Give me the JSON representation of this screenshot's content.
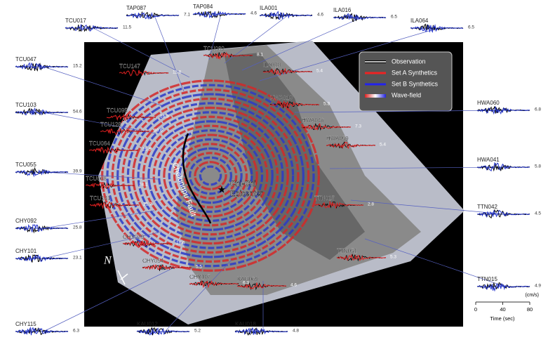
{
  "outer_stations": [
    {
      "label": "TCU017",
      "amplitude": 11.5
    },
    {
      "label": "TAP087",
      "amplitude": 7.1
    },
    {
      "label": "TAP084",
      "amplitude": 4.6
    },
    {
      "label": "ILA001",
      "amplitude": 4.6
    },
    {
      "label": "ILA016",
      "amplitude": 6.5
    },
    {
      "label": "ILA064",
      "amplitude": 6.5
    },
    {
      "label": "TCU047",
      "amplitude": 15.2
    },
    {
      "label": "TCU103",
      "amplitude": 54.6
    },
    {
      "label": "TCU055",
      "amplitude": 39.9
    },
    {
      "label": "CHY092",
      "amplitude": 25.8
    },
    {
      "label": "CHY101",
      "amplitude": 23.1
    },
    {
      "label": "CHY115",
      "amplitude": 6.3
    },
    {
      "label": "KAU012",
      "amplitude": 5.2
    },
    {
      "label": "KAU018",
      "amplitude": 4.8
    },
    {
      "label": "HWA060",
      "amplitude": 6.8
    },
    {
      "label": "HWA041",
      "amplitude": 5.8
    },
    {
      "label": "TTN042",
      "amplitude": 4.5
    },
    {
      "label": "TTN015",
      "amplitude": 4.9
    }
  ],
  "inner_stations": [
    {
      "label": "TCU089",
      "amplitude": 8.1
    },
    {
      "label": "TCU147",
      "amplitude": 11.8
    },
    {
      "label": "ILA010",
      "amplitude": 5.4
    },
    {
      "label": "TCU095",
      "amplitude": 16.3
    },
    {
      "label": "TCU128",
      "amplitude": 30.6
    },
    {
      "label": "TCU064",
      "amplitude": 25.5
    },
    {
      "label": "TCU068",
      "amplitude": 24.1
    },
    {
      "label": "TCU141",
      "amplitude": 21.7
    },
    {
      "label": "HWA019",
      "amplitude": 5.3
    },
    {
      "label": "HWA046",
      "amplitude": 7.3
    },
    {
      "label": "HWA059",
      "amplitude": 5.4
    },
    {
      "label": "TTN025",
      "amplitude": 2.8
    },
    {
      "label": "TTN051",
      "amplitude": 5.3
    },
    {
      "label": "CHY029",
      "amplitude": 18.6
    },
    {
      "label": "CHY054",
      "amplitude": 5.5
    },
    {
      "label": "CHY107",
      "amplitude": 6.3
    },
    {
      "label": "KAU069",
      "amplitude": 4.6
    }
  ],
  "legend": [
    "Observation",
    "Set A Synthetics",
    "Set B Synthetics",
    "Wave-field"
  ],
  "map_labels": {
    "epicenter": [
      "Chi-Chi",
      "Epicenter"
    ],
    "fault": "Chelungpu Fault",
    "north": "N"
  },
  "scale": {
    "unit": "(cm/s)",
    "ticks": [
      0,
      40,
      80
    ],
    "axis_label": "Time (sec)"
  }
}
